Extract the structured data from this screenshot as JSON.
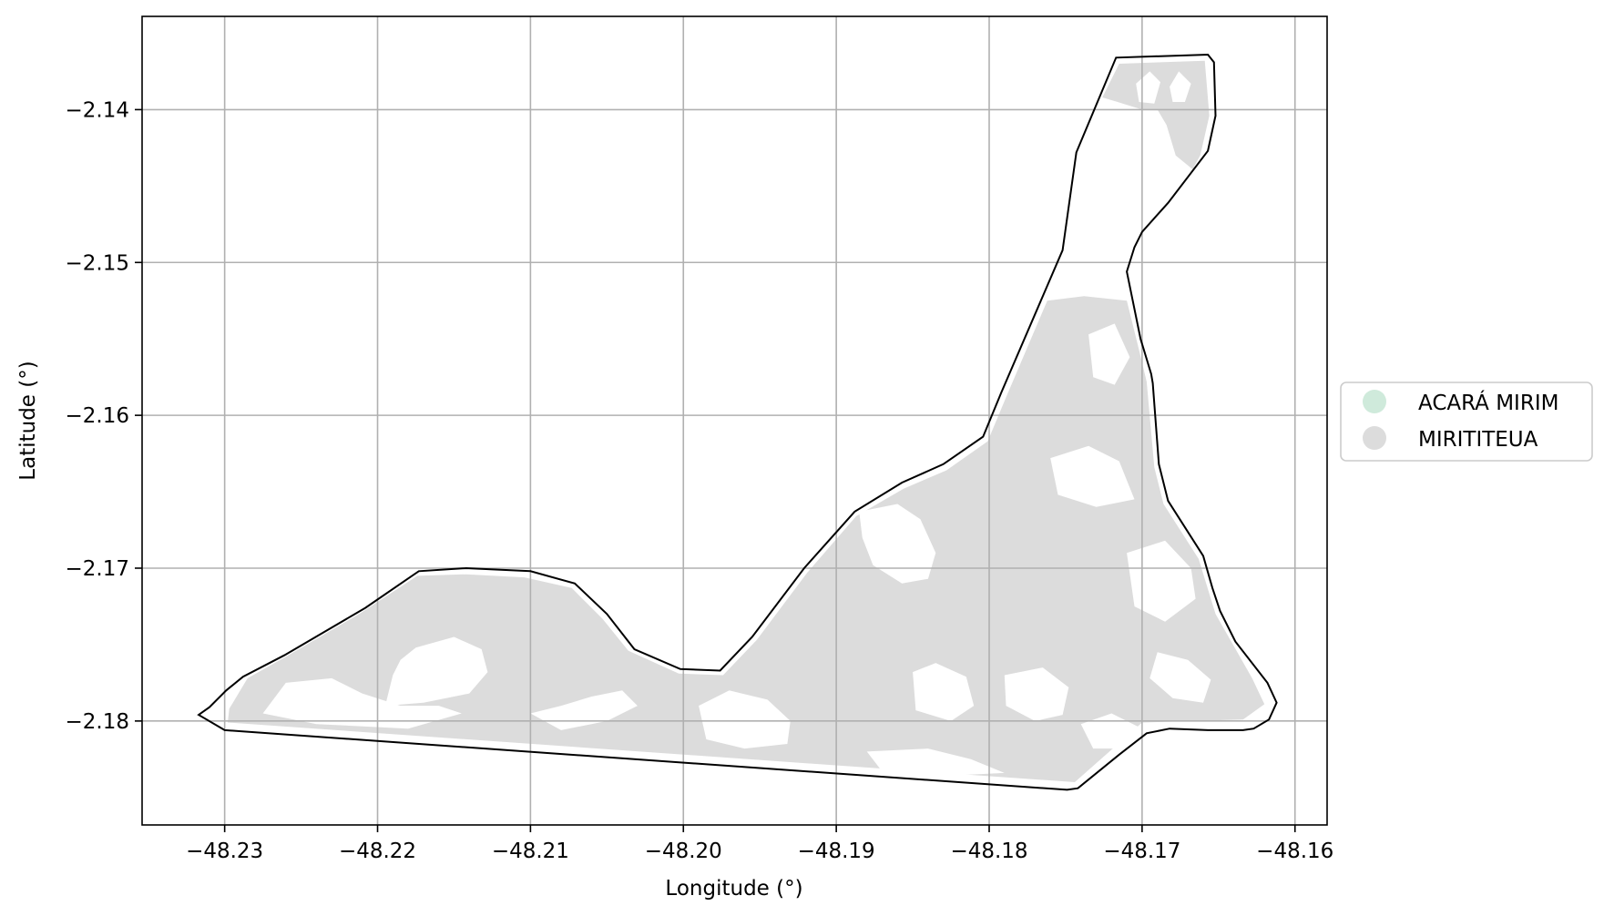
{
  "map": {
    "x_axis": {
      "label": "Longitude (°)",
      "ticks": [
        -48.23,
        -48.22,
        -48.21,
        -48.2,
        -48.19,
        -48.18,
        -48.17,
        -48.16
      ],
      "tick_labels": [
        "−48.23",
        "−48.22",
        "−48.21",
        "−48.20",
        "−48.19",
        "−48.18",
        "−48.17",
        "−48.16"
      ],
      "range": [
        -48.2354,
        -48.1579
      ]
    },
    "y_axis": {
      "label": "Latitude (°)",
      "ticks": [
        -2.14,
        -2.15,
        -2.16,
        -2.17,
        -2.18
      ],
      "tick_labels": [
        "−2.14",
        "−2.15",
        "−2.16",
        "−2.17",
        "−2.18"
      ],
      "range": [
        -2.1868,
        -2.1339
      ]
    },
    "grid": true,
    "legend": {
      "placement": "center-right, outside axes",
      "entries": [
        {
          "label": "ACARÁ MIRIM",
          "color": "#cfeadb"
        },
        {
          "label": "MIRITITEUA",
          "color": "#dcdcdc"
        }
      ]
    },
    "boundary": {
      "stroke_color": "#000000",
      "coordinates": [
        [
          -48.2317,
          -2.1796
        ],
        [
          -48.231,
          -2.1791
        ],
        [
          -48.2299,
          -2.178
        ],
        [
          -48.2288,
          -2.1771
        ],
        [
          -48.2261,
          -2.1757
        ],
        [
          -48.2208,
          -2.1726
        ],
        [
          -48.2173,
          -2.1702
        ],
        [
          -48.2142,
          -2.17
        ],
        [
          -48.21,
          -2.1702
        ],
        [
          -48.2071,
          -2.171
        ],
        [
          -48.205,
          -2.173
        ],
        [
          -48.2032,
          -2.1753
        ],
        [
          -48.2002,
          -2.1766
        ],
        [
          -48.1976,
          -2.1767
        ],
        [
          -48.1955,
          -2.1745
        ],
        [
          -48.1921,
          -2.17
        ],
        [
          -48.1888,
          -2.1663
        ],
        [
          -48.1857,
          -2.1644
        ],
        [
          -48.183,
          -2.1632
        ],
        [
          -48.1804,
          -2.1614
        ],
        [
          -48.1792,
          -2.1585
        ],
        [
          -48.1752,
          -2.1492
        ],
        [
          -48.1743,
          -2.1428
        ],
        [
          -48.1717,
          -2.1366
        ],
        [
          -48.1657,
          -2.1364
        ],
        [
          -48.1653,
          -2.1369
        ],
        [
          -48.1652,
          -2.1404
        ],
        [
          -48.1657,
          -2.1427
        ],
        [
          -48.1683,
          -2.1461
        ],
        [
          -48.17,
          -2.148
        ],
        [
          -48.1705,
          -2.149
        ],
        [
          -48.171,
          -2.1506
        ],
        [
          -48.1701,
          -2.155
        ],
        [
          -48.1694,
          -2.1573
        ],
        [
          -48.1693,
          -2.1579
        ],
        [
          -48.1689,
          -2.1632
        ],
        [
          -48.1683,
          -2.1656
        ],
        [
          -48.166,
          -2.1692
        ],
        [
          -48.1654,
          -2.1713
        ],
        [
          -48.1649,
          -2.1728
        ],
        [
          -48.1639,
          -2.1748
        ],
        [
          -48.1618,
          -2.1775
        ],
        [
          -48.1612,
          -2.1788
        ],
        [
          -48.1617,
          -2.1799
        ],
        [
          -48.1627,
          -2.1805
        ],
        [
          -48.1634,
          -2.1806
        ],
        [
          -48.1657,
          -2.1806
        ],
        [
          -48.1682,
          -2.1805
        ],
        [
          -48.1697,
          -2.1808
        ],
        [
          -48.1715,
          -2.1822
        ],
        [
          -48.1742,
          -2.1844
        ],
        [
          -48.1749,
          -2.1845
        ],
        [
          -48.23,
          -2.1806
        ],
        [
          -48.2317,
          -2.1796
        ]
      ]
    },
    "regions": [
      {
        "name": "MIRITITEUA",
        "color": "#dcdcdc",
        "coordinates": [
          [
            -48.2297,
            -2.1792
          ],
          [
            -48.2285,
            -2.1772
          ],
          [
            -48.226,
            -2.1758
          ],
          [
            -48.2212,
            -2.173
          ],
          [
            -48.2174,
            -2.1705
          ],
          [
            -48.2142,
            -2.1704
          ],
          [
            -48.2104,
            -2.1706
          ],
          [
            -48.2073,
            -2.1713
          ],
          [
            -48.2053,
            -2.1733
          ],
          [
            -48.2036,
            -2.1754
          ],
          [
            -48.2003,
            -2.1769
          ],
          [
            -48.1974,
            -2.177
          ],
          [
            -48.1952,
            -2.1747
          ],
          [
            -48.1919,
            -2.1703
          ],
          [
            -48.1887,
            -2.1666
          ],
          [
            -48.1856,
            -2.1648
          ],
          [
            -48.1828,
            -2.1636
          ],
          [
            -48.1801,
            -2.1617
          ],
          [
            -48.1788,
            -2.1586
          ],
          [
            -48.1762,
            -2.1525
          ],
          [
            -48.1738,
            -2.1522
          ],
          [
            -48.171,
            -2.1525
          ],
          [
            -48.1703,
            -2.1553
          ],
          [
            -48.1697,
            -2.1578
          ],
          [
            -48.1692,
            -2.1634
          ],
          [
            -48.1686,
            -2.1658
          ],
          [
            -48.1663,
            -2.1694
          ],
          [
            -48.1652,
            -2.173
          ],
          [
            -48.1628,
            -2.1772
          ],
          [
            -48.162,
            -2.1789
          ],
          [
            -48.1634,
            -2.1799
          ],
          [
            -48.17,
            -2.1801
          ],
          [
            -48.1718,
            -2.1817
          ],
          [
            -48.1744,
            -2.184
          ],
          [
            -48.2298,
            -2.1801
          ]
        ]
      },
      {
        "name": "MIRITITEUA",
        "color": "#dcdcdc",
        "coordinates": [
          [
            -48.1715,
            -2.137
          ],
          [
            -48.1659,
            -2.1368
          ],
          [
            -48.1656,
            -2.1404
          ],
          [
            -48.1662,
            -2.143
          ],
          [
            -48.1667,
            -2.1439
          ],
          [
            -48.1678,
            -2.143
          ],
          [
            -48.1684,
            -2.141
          ],
          [
            -48.169,
            -2.14
          ],
          [
            -48.17,
            -2.14
          ],
          [
            -48.1716,
            -2.1395
          ],
          [
            -48.1726,
            -2.1392
          ]
        ]
      }
    ],
    "holes": [
      [
        [
          -48.226,
          -2.1775
        ],
        [
          -48.223,
          -2.1772
        ],
        [
          -48.221,
          -2.1782
        ],
        [
          -48.2185,
          -2.179
        ],
        [
          -48.216,
          -2.179
        ],
        [
          -48.2145,
          -2.1795
        ],
        [
          -48.218,
          -2.1805
        ],
        [
          -48.224,
          -2.1802
        ],
        [
          -48.2275,
          -2.1795
        ]
      ],
      [
        [
          -48.219,
          -2.177
        ],
        [
          -48.2185,
          -2.176
        ],
        [
          -48.2175,
          -2.1752
        ],
        [
          -48.215,
          -2.1745
        ],
        [
          -48.2132,
          -2.1753
        ],
        [
          -48.2128,
          -2.1768
        ],
        [
          -48.214,
          -2.1782
        ],
        [
          -48.217,
          -2.1788
        ],
        [
          -48.2195,
          -2.179
        ]
      ],
      [
        [
          -48.21,
          -2.1795
        ],
        [
          -48.208,
          -2.179
        ],
        [
          -48.206,
          -2.1784
        ],
        [
          -48.204,
          -2.178
        ],
        [
          -48.203,
          -2.179
        ],
        [
          -48.205,
          -2.18
        ],
        [
          -48.208,
          -2.1806
        ]
      ],
      [
        [
          -48.199,
          -2.179
        ],
        [
          -48.197,
          -2.178
        ],
        [
          -48.1945,
          -2.1786
        ],
        [
          -48.193,
          -2.18
        ],
        [
          -48.1932,
          -2.1815
        ],
        [
          -48.196,
          -2.1818
        ],
        [
          -48.1985,
          -2.1812
        ]
      ],
      [
        [
          -48.1885,
          -2.1663
        ],
        [
          -48.186,
          -2.1658
        ],
        [
          -48.1845,
          -2.1668
        ],
        [
          -48.1835,
          -2.169
        ],
        [
          -48.184,
          -2.1707
        ],
        [
          -48.1857,
          -2.171
        ],
        [
          -48.1876,
          -2.1698
        ],
        [
          -48.1883,
          -2.168
        ]
      ],
      [
        [
          -48.185,
          -2.1768
        ],
        [
          -48.1835,
          -2.1762
        ],
        [
          -48.1815,
          -2.1771
        ],
        [
          -48.181,
          -2.179
        ],
        [
          -48.1825,
          -2.18
        ],
        [
          -48.1848,
          -2.1793
        ]
      ],
      [
        [
          -48.179,
          -2.177
        ],
        [
          -48.1765,
          -2.1765
        ],
        [
          -48.1748,
          -2.1778
        ],
        [
          -48.1752,
          -2.1796
        ],
        [
          -48.177,
          -2.18
        ],
        [
          -48.1789,
          -2.179
        ]
      ],
      [
        [
          -48.188,
          -2.182
        ],
        [
          -48.184,
          -2.1818
        ],
        [
          -48.1812,
          -2.1825
        ],
        [
          -48.179,
          -2.1834
        ],
        [
          -48.1832,
          -2.1836
        ],
        [
          -48.187,
          -2.1833
        ]
      ],
      [
        [
          -48.176,
          -2.1628
        ],
        [
          -48.1735,
          -2.162
        ],
        [
          -48.1715,
          -2.163
        ],
        [
          -48.1705,
          -2.1655
        ],
        [
          -48.173,
          -2.166
        ],
        [
          -48.1755,
          -2.1652
        ]
      ],
      [
        [
          -48.1735,
          -2.1547
        ],
        [
          -48.1718,
          -2.154
        ],
        [
          -48.1708,
          -2.1562
        ],
        [
          -48.1718,
          -2.158
        ],
        [
          -48.1732,
          -2.1575
        ]
      ],
      [
        [
          -48.171,
          -2.169
        ],
        [
          -48.1685,
          -2.1682
        ],
        [
          -48.1668,
          -2.17
        ],
        [
          -48.1665,
          -2.172
        ],
        [
          -48.1685,
          -2.1735
        ],
        [
          -48.1705,
          -2.1725
        ]
      ],
      [
        [
          -48.169,
          -2.1755
        ],
        [
          -48.167,
          -2.176
        ],
        [
          -48.1655,
          -2.1773
        ],
        [
          -48.166,
          -2.1788
        ],
        [
          -48.168,
          -2.1785
        ],
        [
          -48.1695,
          -2.1772
        ]
      ],
      [
        [
          -48.174,
          -2.1802
        ],
        [
          -48.172,
          -2.1795
        ],
        [
          -48.17,
          -2.1805
        ],
        [
          -48.1715,
          -2.1818
        ],
        [
          -48.1732,
          -2.1818
        ]
      ],
      [
        [
          -48.1695,
          -2.1375
        ],
        [
          -48.1688,
          -2.1382
        ],
        [
          -48.1692,
          -2.1396
        ],
        [
          -48.1702,
          -2.1395
        ],
        [
          -48.1704,
          -2.1383
        ]
      ],
      [
        [
          -48.1676,
          -2.1375
        ],
        [
          -48.1668,
          -2.1383
        ],
        [
          -48.1672,
          -2.1395
        ],
        [
          -48.168,
          -2.1395
        ],
        [
          -48.1682,
          -2.1385
        ]
      ]
    ]
  }
}
